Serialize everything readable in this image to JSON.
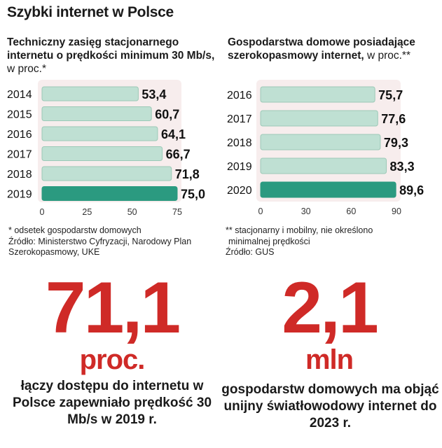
{
  "header": {
    "title": "Szybki internet w Polsce"
  },
  "left": {
    "subtitle_bold": "Techniczny zasięg stacjonarnego internetu o prędkości minimum 30 Mb/s,",
    "subtitle_unit": " w proc.*",
    "note_1": "* odsetek gospodarstw domowych",
    "note_2": "Źródło: Ministerstwo Cyfryzacji, Narodowy Plan Szerokopasmowy, UKE",
    "big_number": "71,1",
    "big_unit": "proc.",
    "caption": "łączy dostępu do internetu w Polsce zapewniało prędkość 30 Mb/s w 2019 r."
  },
  "right": {
    "subtitle_bold": "Gospodarstwa domowe posiadające szerokopasmowy internet,",
    "subtitle_unit": " w proc.**",
    "note_1": "** stacjonarny i mobilny, nie określono",
    "note_1b": "minimalnej prędkości",
    "note_2": "Źródło: GUS",
    "big_number": "2,1",
    "big_unit": "mln",
    "caption": "gospodarstw domowych ma objąć unijny światłowodowy internet do 2023 r."
  },
  "colors": {
    "bar_light": "#bfe0d3",
    "bar_light_stroke": "#9cc9b7",
    "bar_highlight": "#2b9a80",
    "panel_bg": "#f7eded",
    "accent_red": "#cf2a27"
  },
  "chart_data": [
    {
      "type": "bar",
      "orientation": "horizontal",
      "categories": [
        "2014",
        "2015",
        "2016",
        "2017",
        "2018",
        "2019"
      ],
      "values": [
        53.4,
        60.7,
        64.1,
        66.7,
        71.8,
        75.0
      ],
      "value_labels": [
        "53,4",
        "60,7",
        "64,1",
        "66,7",
        "71,8",
        "75,0"
      ],
      "highlight_index": 5,
      "xlim": [
        0,
        75
      ],
      "xticks": [
        0,
        25,
        50,
        75
      ],
      "title": "Techniczny zasięg stacjonarnego internetu o prędkości minimum 30 Mb/s, w proc.*"
    },
    {
      "type": "bar",
      "orientation": "horizontal",
      "categories": [
        "2016",
        "2017",
        "2018",
        "2019",
        "2020"
      ],
      "values": [
        75.7,
        77.6,
        79.3,
        83.3,
        89.6
      ],
      "value_labels": [
        "75,7",
        "77,6",
        "79,3",
        "83,3",
        "89,6"
      ],
      "highlight_index": 4,
      "xlim": [
        0,
        90
      ],
      "xticks": [
        0,
        30,
        60,
        90
      ],
      "title": "Gospodarstwa domowe posiadające szerokopasmowy internet, w proc.**"
    }
  ]
}
